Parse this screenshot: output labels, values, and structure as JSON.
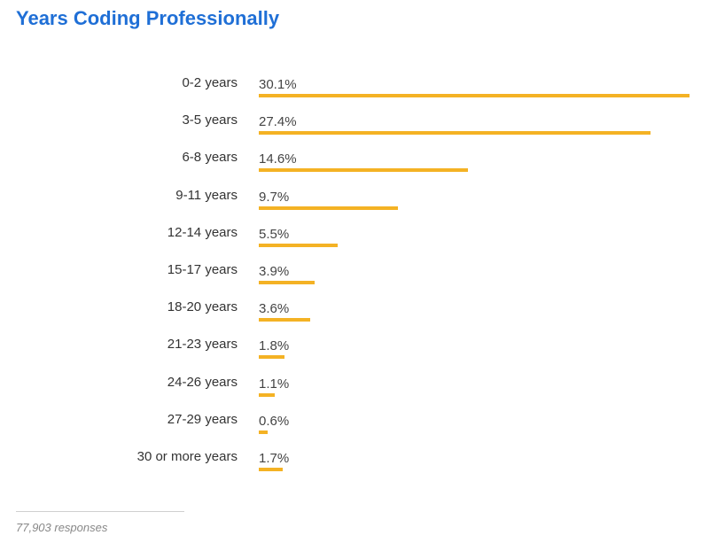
{
  "chart_data": {
    "type": "bar",
    "orientation": "horizontal",
    "title": "Years Coding Professionally",
    "categories": [
      "0-2 years",
      "3-5 years",
      "6-8 years",
      "9-11 years",
      "12-14 years",
      "15-17 years",
      "18-20 years",
      "21-23 years",
      "24-26 years",
      "27-29 years",
      "30 or more years"
    ],
    "values": [
      30.1,
      27.4,
      14.6,
      9.7,
      5.5,
      3.9,
      3.6,
      1.8,
      1.1,
      0.6,
      1.7
    ],
    "value_labels": [
      "30.1%",
      "27.4%",
      "14.6%",
      "9.7%",
      "5.5%",
      "3.9%",
      "3.6%",
      "1.8%",
      "1.1%",
      "0.6%",
      "1.7%"
    ],
    "unit": "%",
    "xlim": [
      0,
      30.1
    ],
    "grid": false,
    "legend": "none",
    "bar_color": "#f4b224"
  },
  "colors": {
    "title": "#1f6fd6",
    "bar": "#f4b224",
    "label": "#333333"
  },
  "footnote": "77,903 responses"
}
